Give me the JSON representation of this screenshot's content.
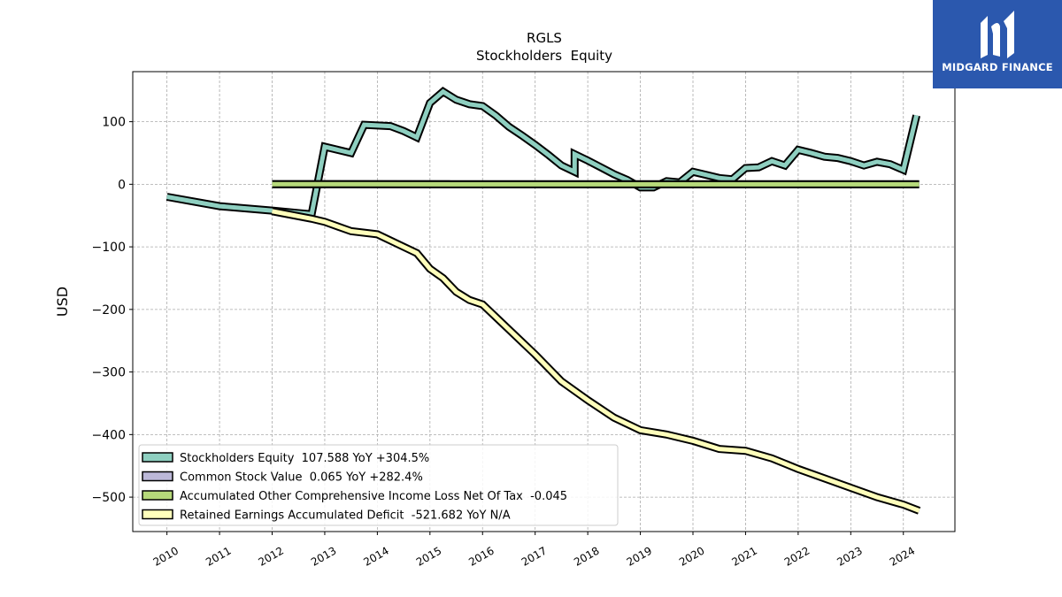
{
  "brand": {
    "name": "MIDGARD FINANCE",
    "color": "#2b58ae"
  },
  "chart_data": {
    "type": "line",
    "title": "RGLS",
    "subtitle": "Stockholders  Equity",
    "ylabel": "USD",
    "xlabel": "",
    "ylim": [
      -555,
      180
    ],
    "xlim": [
      2009.35,
      2024.98
    ],
    "yticks": [
      100,
      0,
      -100,
      -200,
      -300,
      -400,
      -500
    ],
    "xticks": [
      "2010",
      "2011",
      "2012",
      "2013",
      "2014",
      "2015",
      "2016",
      "2017",
      "2018",
      "2019",
      "2020",
      "2021",
      "2022",
      "2023",
      "2024"
    ],
    "grid": true,
    "legend_position": "lower-left",
    "series": [
      {
        "name": "Stockholders Equity",
        "legend": "Stockholders Equity  107.588 YoY +304.5%",
        "color": "#8ecfc0",
        "points": [
          [
            2010.0,
            -20
          ],
          [
            2011.0,
            -35
          ],
          [
            2012.0,
            -42
          ],
          [
            2012.75,
            -48
          ],
          [
            2013.0,
            60
          ],
          [
            2013.5,
            50
          ],
          [
            2013.75,
            95
          ],
          [
            2014.25,
            93
          ],
          [
            2014.5,
            85
          ],
          [
            2014.75,
            75
          ],
          [
            2015.0,
            130
          ],
          [
            2015.25,
            148
          ],
          [
            2015.5,
            135
          ],
          [
            2015.75,
            128
          ],
          [
            2016.0,
            125
          ],
          [
            2016.25,
            110
          ],
          [
            2016.5,
            92
          ],
          [
            2016.75,
            78
          ],
          [
            2017.0,
            63
          ],
          [
            2017.25,
            47
          ],
          [
            2017.5,
            30
          ],
          [
            2017.75,
            20
          ],
          [
            2017.75,
            20
          ],
          [
            2017.75,
            48
          ],
          [
            2018.0,
            38
          ],
          [
            2018.25,
            27
          ],
          [
            2018.5,
            16
          ],
          [
            2018.75,
            7
          ],
          [
            2019.0,
            -5
          ],
          [
            2019.25,
            -5
          ],
          [
            2019.5,
            5
          ],
          [
            2019.75,
            3
          ],
          [
            2020.0,
            20
          ],
          [
            2020.25,
            15
          ],
          [
            2020.5,
            10
          ],
          [
            2020.75,
            8
          ],
          [
            2021.0,
            26
          ],
          [
            2021.25,
            27
          ],
          [
            2021.5,
            37
          ],
          [
            2021.75,
            30
          ],
          [
            2022.0,
            55
          ],
          [
            2022.25,
            50
          ],
          [
            2022.5,
            44
          ],
          [
            2022.75,
            42
          ],
          [
            2023.0,
            37
          ],
          [
            2023.25,
            30
          ],
          [
            2023.5,
            36
          ],
          [
            2023.75,
            32
          ],
          [
            2024.0,
            23
          ],
          [
            2024.25,
            110
          ]
        ]
      },
      {
        "name": "Common Stock Value",
        "legend": "Common Stock Value  0.065 YoY +282.4%",
        "color": "#bcb8d8",
        "points": [
          [
            2012.0,
            0.02
          ],
          [
            2024.3,
            0.065
          ]
        ]
      },
      {
        "name": "Accumulated Other Comprehensive Income Loss Net Of Tax",
        "legend": "Accumulated Other Comprehensive Income Loss Net Of Tax  -0.045",
        "color": "#b6d97a",
        "points": [
          [
            2012.0,
            0
          ],
          [
            2024.3,
            -0.045
          ]
        ]
      },
      {
        "name": "Retained Earnings Accumulated Deficit",
        "legend": "Retained Earnings Accumulated Deficit  -521.682 YoY N/A",
        "color": "#ffffbb",
        "points": [
          [
            2012.0,
            -43
          ],
          [
            2012.75,
            -55
          ],
          [
            2013.0,
            -60
          ],
          [
            2013.5,
            -75
          ],
          [
            2014.0,
            -80
          ],
          [
            2014.5,
            -100
          ],
          [
            2014.75,
            -110
          ],
          [
            2015.0,
            -135
          ],
          [
            2015.25,
            -150
          ],
          [
            2015.5,
            -172
          ],
          [
            2015.75,
            -185
          ],
          [
            2016.0,
            -192
          ],
          [
            2016.5,
            -232
          ],
          [
            2017.0,
            -272
          ],
          [
            2017.5,
            -315
          ],
          [
            2018.0,
            -345
          ],
          [
            2018.5,
            -373
          ],
          [
            2019.0,
            -393
          ],
          [
            2019.5,
            -400
          ],
          [
            2020.0,
            -410
          ],
          [
            2020.5,
            -423
          ],
          [
            2021.0,
            -426
          ],
          [
            2021.5,
            -438
          ],
          [
            2022.0,
            -455
          ],
          [
            2022.5,
            -470
          ],
          [
            2023.0,
            -485
          ],
          [
            2023.5,
            -500
          ],
          [
            2024.0,
            -512
          ],
          [
            2024.3,
            -521.682
          ]
        ]
      }
    ]
  }
}
